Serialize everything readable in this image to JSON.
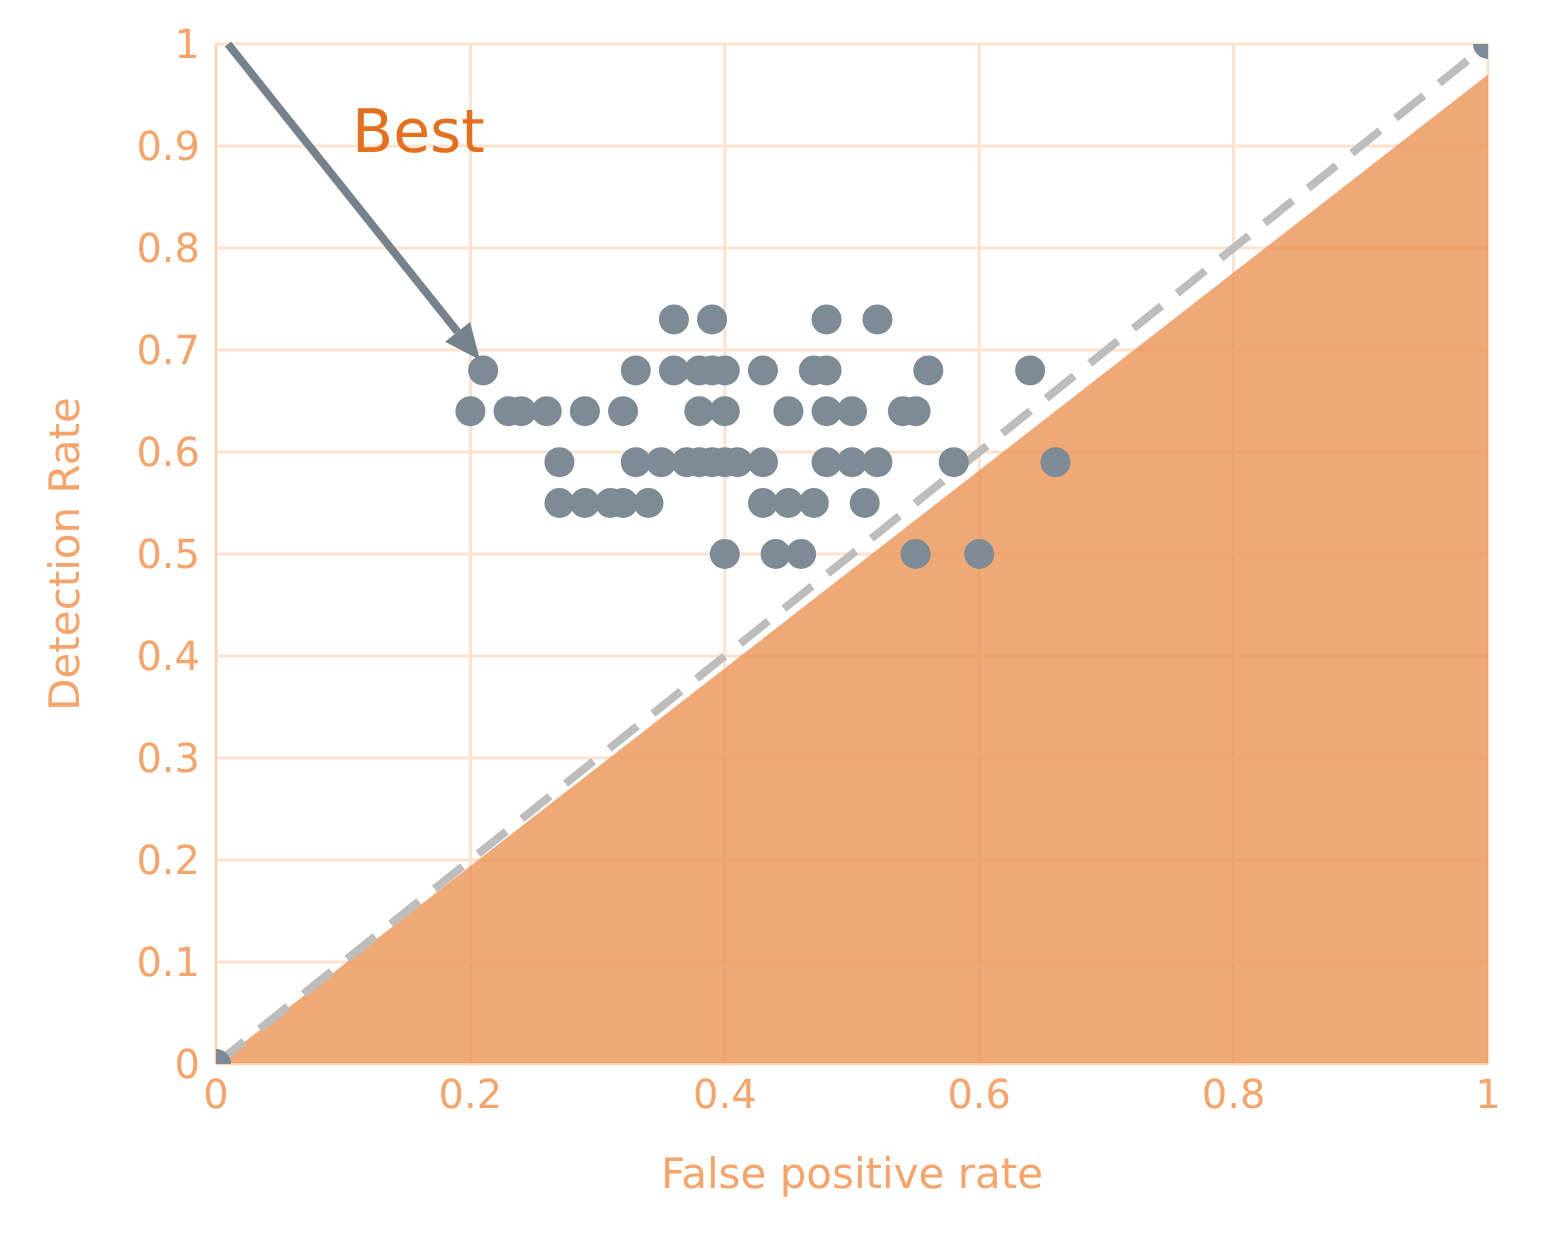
{
  "chart_data": {
    "type": "scatter",
    "xlabel": "False positive rate",
    "ylabel": "Detection Rate",
    "annotations": [
      "Best"
    ],
    "xlim": [
      0,
      1
    ],
    "ylim": [
      0,
      1
    ],
    "xticks": [
      0,
      0.2,
      0.4,
      0.6,
      0.8,
      1
    ],
    "yticks": [
      0,
      0.1,
      0.2,
      0.3,
      0.4,
      0.5,
      0.6,
      0.7,
      0.8,
      0.9,
      1
    ],
    "grid": true,
    "series": [
      {
        "color": "#7d8b95",
        "marker": "circle",
        "x": [
          0,
          1,
          0.36,
          0.39,
          0.48,
          0.52,
          0.21,
          0.33,
          0.36,
          0.38,
          0.39,
          0.4,
          0.43,
          0.47,
          0.48,
          0.56,
          0.64,
          0.2,
          0.23,
          0.24,
          0.26,
          0.29,
          0.32,
          0.38,
          0.4,
          0.45,
          0.48,
          0.5,
          0.54,
          0.55,
          0.27,
          0.33,
          0.35,
          0.37,
          0.38,
          0.39,
          0.4,
          0.41,
          0.43,
          0.48,
          0.5,
          0.52,
          0.58,
          0.66,
          0.27,
          0.29,
          0.31,
          0.32,
          0.34,
          0.43,
          0.45,
          0.47,
          0.51,
          0.4,
          0.44,
          0.46,
          0.55,
          0.6
        ],
        "values": [
          0,
          1,
          0.73,
          0.73,
          0.73,
          0.73,
          0.68,
          0.68,
          0.68,
          0.68,
          0.68,
          0.68,
          0.68,
          0.68,
          0.68,
          0.68,
          0.68,
          0.64,
          0.64,
          0.64,
          0.64,
          0.64,
          0.64,
          0.64,
          0.64,
          0.64,
          0.64,
          0.64,
          0.64,
          0.64,
          0.59,
          0.59,
          0.59,
          0.59,
          0.59,
          0.59,
          0.59,
          0.59,
          0.59,
          0.59,
          0.59,
          0.59,
          0.59,
          0.59,
          0.55,
          0.55,
          0.55,
          0.55,
          0.55,
          0.55,
          0.55,
          0.55,
          0.55,
          0.5,
          0.5,
          0.5,
          0.5,
          0.5
        ]
      },
      {
        "type": "area",
        "color": "#e98c4a",
        "x": [
          0,
          1
        ],
        "values": [
          0,
          0.97
        ]
      },
      {
        "type": "line",
        "color": "#bdbdbd",
        "line_style": "dashed",
        "marker": "none",
        "x": [
          0,
          1
        ],
        "values": [
          0,
          1
        ]
      }
    ]
  }
}
